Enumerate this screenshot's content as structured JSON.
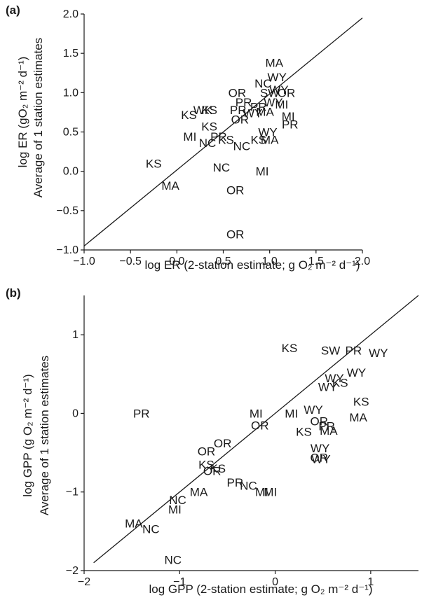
{
  "panels": [
    {
      "panel_label": "(a)",
      "xlabel": "log ER (2-station estimate; g O₂ m⁻² d⁻¹)",
      "ylabel_line1": "log ER (gO₂ m⁻² d⁻¹)",
      "ylabel_line2": "Average of 1 station estimates"
    },
    {
      "panel_label": "(b)",
      "xlabel": "log GPP (2-station estimate; g O₂ m⁻² d⁻¹)",
      "ylabel_line1": "log GPP (g O₂ m⁻² d⁻¹)",
      "ylabel_line2": "Average of 1 station estimates"
    }
  ],
  "chart_data": [
    {
      "type": "scatter",
      "title": "",
      "xlabel": "log ER (2-station estimate; g O₂ m⁻² d⁻¹)",
      "ylabel": "log ER (gO₂ m⁻² d⁻¹) Average of 1 station estimates",
      "xlim": [
        -1.0,
        2.0
      ],
      "ylim": [
        -1.0,
        2.0
      ],
      "xticks": [
        -1.0,
        -0.5,
        0.0,
        0.5,
        1.0,
        1.5,
        2.0
      ],
      "yticks": [
        -1.0,
        -0.5,
        0.0,
        0.5,
        1.0,
        1.5,
        2.0
      ],
      "xtick_labels": [
        "−1.0",
        "−0.5",
        "0.0",
        "0.5",
        "1.0",
        "1.5",
        "2.0"
      ],
      "ytick_labels": [
        "−1.0",
        "−0.5",
        "0.0",
        "0.5",
        "1.0",
        "1.5",
        "2.0"
      ],
      "reference_line": {
        "x": [
          -1.0,
          2.0
        ],
        "y": [
          -0.95,
          1.95
        ]
      },
      "grid": false,
      "points": [
        {
          "label": "MA",
          "x": 1.05,
          "y": 1.38
        },
        {
          "label": "WY",
          "x": 1.08,
          "y": 1.2
        },
        {
          "label": "NC",
          "x": 0.93,
          "y": 1.12
        },
        {
          "label": "WY",
          "x": 1.1,
          "y": 1.04
        },
        {
          "label": "SW",
          "x": 1.0,
          "y": 1.0
        },
        {
          "label": "OR",
          "x": 1.18,
          "y": 1.0
        },
        {
          "label": "OR",
          "x": 0.65,
          "y": 1.0
        },
        {
          "label": "PR",
          "x": 0.72,
          "y": 0.88
        },
        {
          "label": "WY",
          "x": 1.04,
          "y": 0.88
        },
        {
          "label": "MI",
          "x": 1.13,
          "y": 0.85
        },
        {
          "label": "PR",
          "x": 0.88,
          "y": 0.82
        },
        {
          "label": "PR",
          "x": 0.66,
          "y": 0.78
        },
        {
          "label": "WY",
          "x": 0.82,
          "y": 0.74
        },
        {
          "label": "MA",
          "x": 0.95,
          "y": 0.76
        },
        {
          "label": "MI",
          "x": 1.2,
          "y": 0.7
        },
        {
          "label": "KS",
          "x": 0.13,
          "y": 0.72
        },
        {
          "label": "WK",
          "x": 0.28,
          "y": 0.78
        },
        {
          "label": "KS",
          "x": 0.35,
          "y": 0.78
        },
        {
          "label": "OR",
          "x": 0.68,
          "y": 0.66
        },
        {
          "label": "PR",
          "x": 1.22,
          "y": 0.6
        },
        {
          "label": "WY",
          "x": 0.98,
          "y": 0.5
        },
        {
          "label": "KS",
          "x": 0.35,
          "y": 0.57
        },
        {
          "label": "KS",
          "x": 0.88,
          "y": 0.4
        },
        {
          "label": "MA",
          "x": 1.0,
          "y": 0.4
        },
        {
          "label": "MI",
          "x": 0.14,
          "y": 0.44
        },
        {
          "label": "PR",
          "x": 0.45,
          "y": 0.44
        },
        {
          "label": "KS",
          "x": 0.53,
          "y": 0.4
        },
        {
          "label": "NC",
          "x": 0.33,
          "y": 0.36
        },
        {
          "label": "NC",
          "x": 0.7,
          "y": 0.32
        },
        {
          "label": "KS",
          "x": -0.25,
          "y": 0.1
        },
        {
          "label": "NC",
          "x": 0.48,
          "y": 0.05
        },
        {
          "label": "MI",
          "x": 0.92,
          "y": 0.0
        },
        {
          "label": "MA",
          "x": -0.07,
          "y": -0.18
        },
        {
          "label": "OR",
          "x": 0.63,
          "y": -0.24
        },
        {
          "label": "OR",
          "x": 0.63,
          "y": -0.8
        }
      ]
    },
    {
      "type": "scatter",
      "title": "",
      "xlabel": "log GPP (2-station estimate; g O₂ m⁻² d⁻¹)",
      "ylabel": "log GPP (g O₂ m⁻² d⁻¹) Average of 1 station estimates",
      "xlim": [
        -2.0,
        1.5
      ],
      "ylim": [
        -2.0,
        1.5
      ],
      "xticks": [
        -2,
        -1,
        0,
        1
      ],
      "yticks": [
        -2,
        -1,
        0,
        1
      ],
      "xtick_labels": [
        "−2",
        "−1",
        "0",
        "1"
      ],
      "ytick_labels": [
        "−2",
        "−1",
        "0",
        "1"
      ],
      "reference_line": {
        "x": [
          -1.9,
          1.5
        ],
        "y": [
          -1.9,
          1.5
        ]
      },
      "grid": false,
      "points": [
        {
          "label": "KS",
          "x": 0.15,
          "y": 0.83
        },
        {
          "label": "SW",
          "x": 0.58,
          "y": 0.8
        },
        {
          "label": "PR",
          "x": 0.82,
          "y": 0.8
        },
        {
          "label": "WY",
          "x": 1.08,
          "y": 0.77
        },
        {
          "label": "WY",
          "x": 0.85,
          "y": 0.52
        },
        {
          "label": "WY",
          "x": 0.62,
          "y": 0.45
        },
        {
          "label": "KS",
          "x": 0.68,
          "y": 0.39
        },
        {
          "label": "WY",
          "x": 0.55,
          "y": 0.34
        },
        {
          "label": "KS",
          "x": 0.9,
          "y": 0.15
        },
        {
          "label": "MA",
          "x": 0.87,
          "y": -0.05
        },
        {
          "label": "MI",
          "x": -0.2,
          "y": 0.0
        },
        {
          "label": "MI",
          "x": 0.17,
          "y": 0.0
        },
        {
          "label": "WY",
          "x": 0.4,
          "y": 0.05
        },
        {
          "label": "OR",
          "x": -0.16,
          "y": -0.15
        },
        {
          "label": "OR",
          "x": 0.46,
          "y": -0.1
        },
        {
          "label": "PR",
          "x": 0.54,
          "y": -0.16
        },
        {
          "label": "MA",
          "x": 0.56,
          "y": -0.22
        },
        {
          "label": "KS",
          "x": 0.3,
          "y": -0.23
        },
        {
          "label": "PR",
          "x": -1.4,
          "y": 0.0
        },
        {
          "label": "OR",
          "x": -0.55,
          "y": -0.38
        },
        {
          "label": "OR",
          "x": -0.72,
          "y": -0.48
        },
        {
          "label": "WY",
          "x": 0.47,
          "y": -0.44
        },
        {
          "label": "OR",
          "x": 0.46,
          "y": -0.56
        },
        {
          "label": "WY",
          "x": 0.48,
          "y": -0.58
        },
        {
          "label": "KS",
          "x": -0.72,
          "y": -0.65
        },
        {
          "label": "KS",
          "x": -0.6,
          "y": -0.7
        },
        {
          "label": "OR",
          "x": -0.66,
          "y": -0.73
        },
        {
          "label": "PR",
          "x": -0.42,
          "y": -0.88
        },
        {
          "label": "NC",
          "x": -0.28,
          "y": -0.92
        },
        {
          "label": "MA",
          "x": -0.8,
          "y": -1.0
        },
        {
          "label": "MI",
          "x": -0.14,
          "y": -1.0
        },
        {
          "label": "MI",
          "x": -0.05,
          "y": -1.0
        },
        {
          "label": "NC",
          "x": -1.02,
          "y": -1.1
        },
        {
          "label": "MI",
          "x": -1.05,
          "y": -1.22
        },
        {
          "label": "MA",
          "x": -1.48,
          "y": -1.4
        },
        {
          "label": "NC",
          "x": -1.3,
          "y": -1.47
        },
        {
          "label": "NC",
          "x": -1.07,
          "y": -1.86
        }
      ]
    }
  ]
}
